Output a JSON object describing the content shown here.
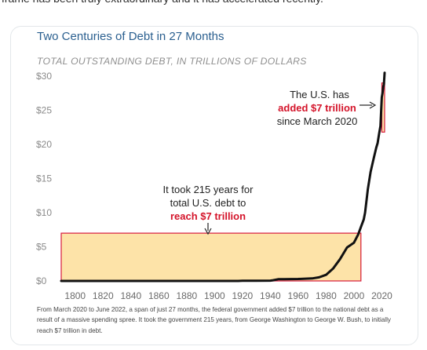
{
  "page": {
    "intro_text": "frame has been truly extraordinary and it  has accelerated recently."
  },
  "colors": {
    "title": "#2a5f8f",
    "line": "#111111",
    "box_fill": "#fde3a8",
    "box_stroke": "#d61a3c",
    "highlight": "#d4142a"
  },
  "chart_data": {
    "type": "line",
    "title": "Two Centuries of Debt in 27 Months",
    "subtitle": "TOTAL OUTSTANDING DEBT, IN TRILLIONS OF DOLLARS",
    "xlabel": "",
    "ylabel": "",
    "xlim": [
      1790,
      2022
    ],
    "ylim": [
      0,
      30
    ],
    "x_ticks": [
      1800,
      1820,
      1840,
      1860,
      1880,
      1900,
      1920,
      1940,
      1960,
      1980,
      2000,
      2020
    ],
    "y_ticks": [
      {
        "value": 0,
        "label": "$0"
      },
      {
        "value": 5,
        "label": "$5"
      },
      {
        "value": 10,
        "label": "$10"
      },
      {
        "value": 15,
        "label": "$15"
      },
      {
        "value": 20,
        "label": "$20"
      },
      {
        "value": 25,
        "label": "$25"
      },
      {
        "value": 30,
        "label": "$30"
      }
    ],
    "grid": false,
    "series": [
      {
        "x": [
          1790,
          1800,
          1820,
          1840,
          1860,
          1880,
          1900,
          1917,
          1920,
          1930,
          1940,
          1942,
          1946,
          1950,
          1960,
          1970,
          1975,
          1980,
          1985,
          1990,
          1995,
          2000,
          2003,
          2005,
          2007,
          2008,
          2010,
          2012,
          2014,
          2016,
          2017,
          2018,
          2019,
          2020,
          2020.5,
          2021,
          2021.5,
          2022
        ],
        "y": [
          0,
          0,
          0,
          0,
          0,
          0,
          0,
          0,
          0.03,
          0.02,
          0.05,
          0.1,
          0.27,
          0.26,
          0.29,
          0.37,
          0.53,
          0.9,
          1.8,
          3.2,
          4.9,
          5.6,
          6.8,
          7.9,
          9.0,
          10.0,
          13.5,
          16.0,
          17.8,
          19.5,
          20.2,
          21.5,
          22.7,
          26.9,
          27.5,
          28.4,
          28.8,
          30.5
        ]
      }
    ],
    "highlight_boxes": [
      {
        "x0": 1790,
        "x1": 2005,
        "y0": 0,
        "y1": 7
      },
      {
        "x0": 2020,
        "x1": 2022,
        "y0": 21.8,
        "y1": 29
      }
    ],
    "annotations": {
      "left": {
        "line1": "It took 215 years for",
        "line2": "total U.S. debt to",
        "emphasis": "reach $7 trillion"
      },
      "right": {
        "line1": "The U.S. has",
        "emphasis": "added $7 trillion",
        "line3": "since March 2020"
      }
    },
    "footnote": "From March 2020 to June 2022, a span of just 27 months, the federal government added $7 trillion to the national debt as a result of a massive spending spree. It took the government 215 years, from George Washington to George W. Bush, to initially reach $7 trillion in debt."
  }
}
